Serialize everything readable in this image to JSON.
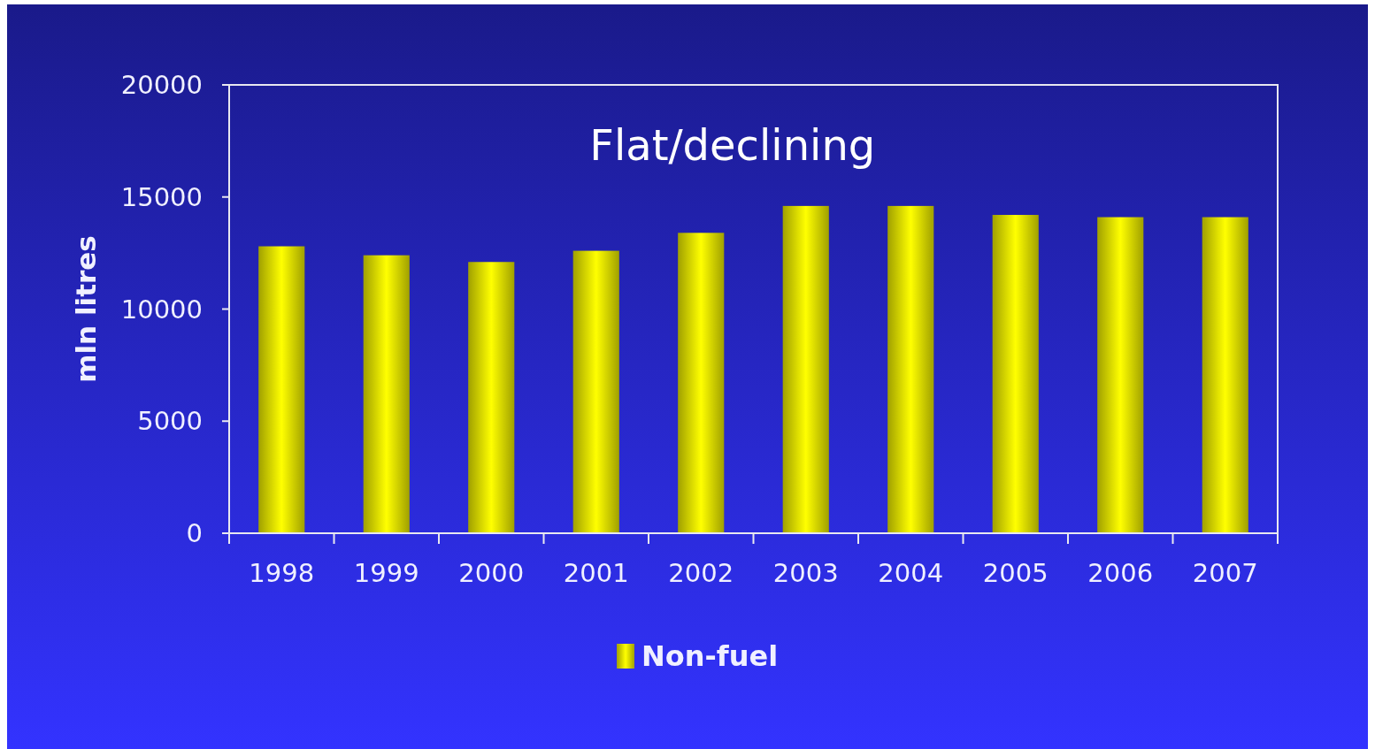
{
  "chart_data": {
    "type": "bar",
    "title": "Flat/declining",
    "ylabel": "mln litres",
    "categories": [
      "1998",
      "1999",
      "2000",
      "2001",
      "2002",
      "2003",
      "2004",
      "2005",
      "2006",
      "2007"
    ],
    "series": [
      {
        "name": "Non-fuel",
        "color": "#ffff00",
        "values": [
          12800,
          12400,
          12100,
          12600,
          13400,
          14600,
          14600,
          14200,
          14100,
          14100
        ]
      }
    ],
    "ylim": [
      0,
      20000
    ],
    "yticks": [
      0,
      5000,
      10000,
      15000,
      20000
    ],
    "grid": false,
    "legend": "bottom"
  }
}
